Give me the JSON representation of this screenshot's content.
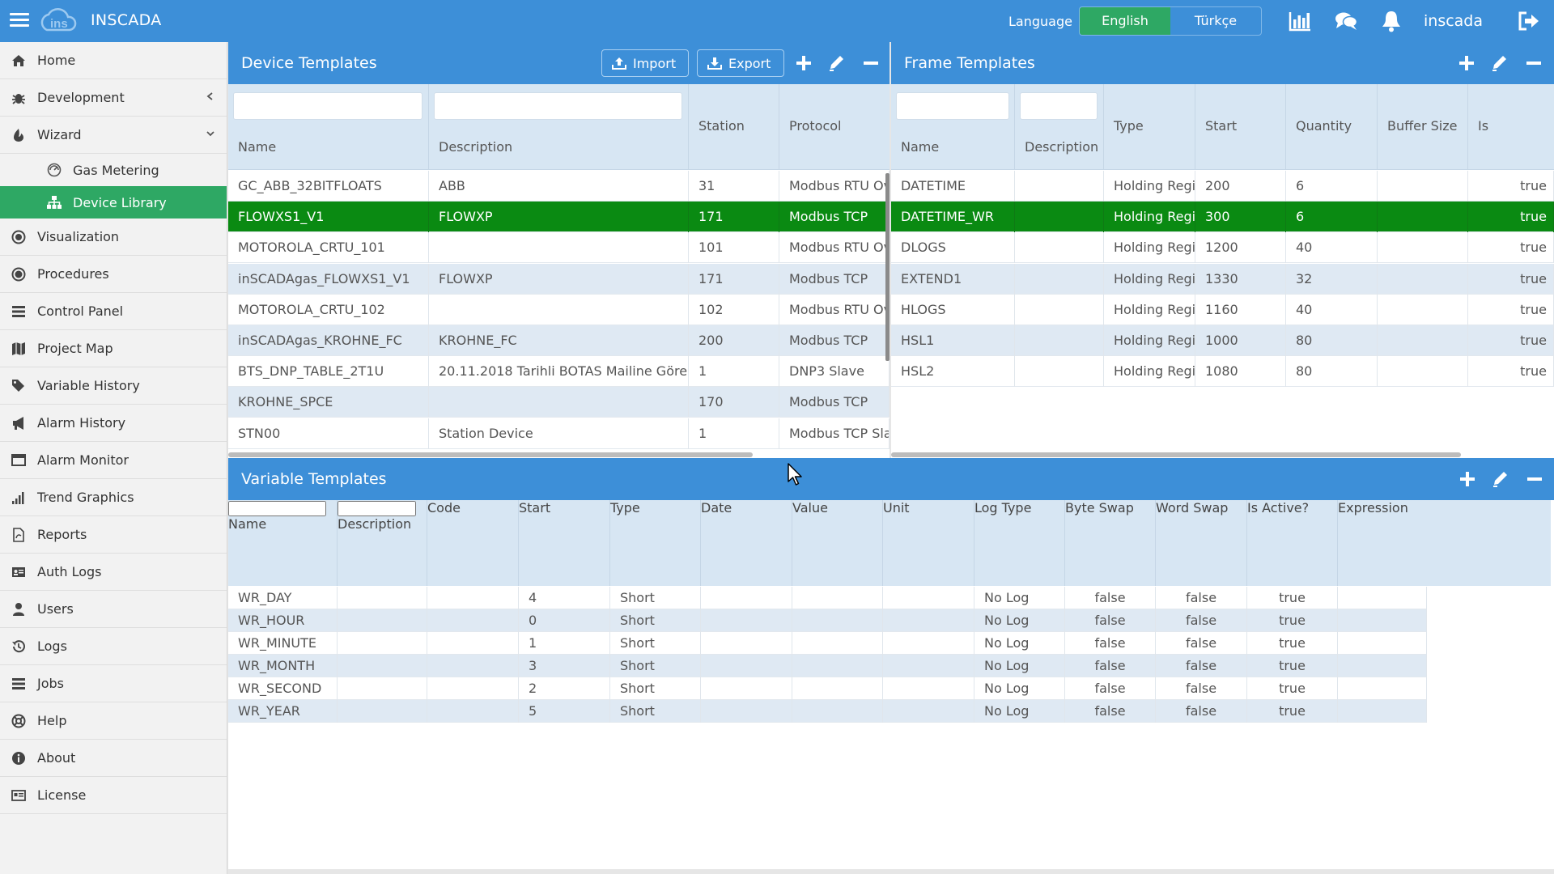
{
  "app": {
    "title": "INSCADA",
    "language_label": "Language",
    "languages": [
      "English",
      "Türkçe"
    ],
    "active_language": "English",
    "username": "inscada"
  },
  "colors": {
    "brand_blue": "#3d8fd8",
    "active_green": "#2ea864",
    "row_selected": "#0a8a12",
    "row_alt": "#dfe9f3",
    "header_bg": "#d7e6f3"
  },
  "sidebar": {
    "items": [
      {
        "label": "Home",
        "icon": "home-icon"
      },
      {
        "label": "Development",
        "icon": "bug-icon",
        "chevron": "chevron-left-icon"
      },
      {
        "label": "Wizard",
        "icon": "wizard-icon",
        "chevron": "chevron-down-icon"
      },
      {
        "label": "Gas Metering",
        "icon": "gas-icon",
        "sub": true
      },
      {
        "label": "Device Library",
        "icon": "sitemap-icon",
        "sub": true,
        "active": true
      },
      {
        "label": "Visualization",
        "icon": "visualization-icon"
      },
      {
        "label": "Procedures",
        "icon": "procedures-icon"
      },
      {
        "label": "Control Panel",
        "icon": "control-panel-icon"
      },
      {
        "label": "Project Map",
        "icon": "map-icon"
      },
      {
        "label": "Variable History",
        "icon": "tags-icon"
      },
      {
        "label": "Alarm History",
        "icon": "bullhorn-icon"
      },
      {
        "label": "Alarm Monitor",
        "icon": "monitor-icon"
      },
      {
        "label": "Trend Graphics",
        "icon": "signal-icon"
      },
      {
        "label": "Reports",
        "icon": "report-icon"
      },
      {
        "label": "Auth Logs",
        "icon": "id-card-icon"
      },
      {
        "label": "Users",
        "icon": "user-icon"
      },
      {
        "label": "Logs",
        "icon": "history-icon"
      },
      {
        "label": "Jobs",
        "icon": "list-icon"
      },
      {
        "label": "Help",
        "icon": "life-ring-icon"
      },
      {
        "label": "About",
        "icon": "info-icon"
      },
      {
        "label": "License",
        "icon": "license-icon"
      }
    ]
  },
  "device_templates": {
    "title": "Device Templates",
    "import_label": "Import",
    "export_label": "Export",
    "columns": [
      "Name",
      "Description",
      "Station",
      "Protocol"
    ],
    "rows": [
      [
        "GC_ABB_32BITFLOATS",
        "ABB",
        "31",
        "Modbus RTU Ove"
      ],
      [
        "FLOWXS1_V1",
        "FLOWXP",
        "171",
        "Modbus TCP"
      ],
      [
        "MOTOROLA_CRTU_101",
        "",
        "101",
        "Modbus RTU Ove"
      ],
      [
        "inSCADAgas_FLOWXS1_V1",
        "FLOWXP",
        "171",
        "Modbus TCP"
      ],
      [
        "MOTOROLA_CRTU_102",
        "",
        "102",
        "Modbus RTU Ove"
      ],
      [
        "inSCADAgas_KROHNE_FC",
        "KROHNE_FC",
        "200",
        "Modbus TCP"
      ],
      [
        "BTS_DNP_TABLE_2T1U",
        "20.11.2018 Tarihli BOTAS Mailine Göre",
        "1",
        "DNP3 Slave"
      ],
      [
        "KROHNE_SPCE",
        "",
        "170",
        "Modbus TCP"
      ],
      [
        "STN00",
        "Station Device",
        "1",
        "Modbus TCP Slav"
      ]
    ],
    "selected_row": 1
  },
  "frame_templates": {
    "title": "Frame Templates",
    "columns": [
      "Name",
      "Description",
      "Type",
      "Start",
      "Quantity",
      "Buffer Size",
      "Is"
    ],
    "rows": [
      [
        "DATETIME",
        "",
        "Holding Regis",
        "200",
        "6",
        "",
        "true"
      ],
      [
        "DATETIME_WR",
        "",
        "Holding Regis",
        "300",
        "6",
        "",
        "true"
      ],
      [
        "DLOGS",
        "",
        "Holding Regis",
        "1200",
        "40",
        "",
        "true"
      ],
      [
        "EXTEND1",
        "",
        "Holding Regis",
        "1330",
        "32",
        "",
        "true"
      ],
      [
        "HLOGS",
        "",
        "Holding Regis",
        "1160",
        "40",
        "",
        "true"
      ],
      [
        "HSL1",
        "",
        "Holding Regis",
        "1000",
        "80",
        "",
        "true"
      ],
      [
        "HSL2",
        "",
        "Holding Regis",
        "1080",
        "80",
        "",
        "true"
      ]
    ],
    "selected_row": 1
  },
  "variable_templates": {
    "title": "Variable Templates",
    "columns": [
      "Name",
      "Description",
      "Code",
      "Start",
      "Type",
      "Date",
      "Value",
      "Unit",
      "Log Type",
      "Byte Swap",
      "Word Swap",
      "Is Active?",
      "Expression"
    ],
    "rows": [
      [
        "WR_DAY",
        "",
        "",
        "4",
        "Short",
        "",
        "",
        "",
        "No Log",
        "false",
        "false",
        "true",
        ""
      ],
      [
        "WR_HOUR",
        "",
        "",
        "0",
        "Short",
        "",
        "",
        "",
        "No Log",
        "false",
        "false",
        "true",
        ""
      ],
      [
        "WR_MINUTE",
        "",
        "",
        "1",
        "Short",
        "",
        "",
        "",
        "No Log",
        "false",
        "false",
        "true",
        ""
      ],
      [
        "WR_MONTH",
        "",
        "",
        "3",
        "Short",
        "",
        "",
        "",
        "No Log",
        "false",
        "false",
        "true",
        ""
      ],
      [
        "WR_SECOND",
        "",
        "",
        "2",
        "Short",
        "",
        "",
        "",
        "No Log",
        "false",
        "false",
        "true",
        ""
      ],
      [
        "WR_YEAR",
        "",
        "",
        "5",
        "Short",
        "",
        "",
        "",
        "No Log",
        "false",
        "false",
        "true",
        ""
      ]
    ]
  }
}
